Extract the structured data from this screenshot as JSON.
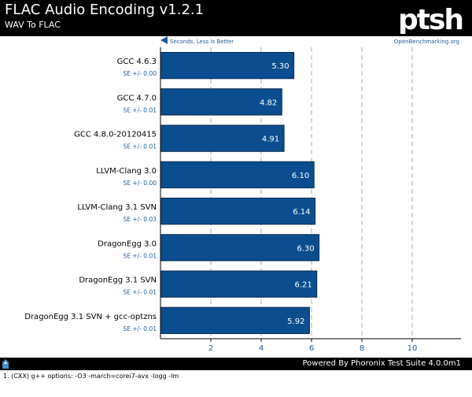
{
  "header": {
    "title": "FLAC Audio Encoding v1.2.1",
    "subtitle": "WAV To FLAC",
    "logo_text": "ptsh"
  },
  "chart_data": {
    "type": "bar",
    "orientation": "horizontal",
    "direction_note": "Seconds, Less Is Better",
    "source": "OpenBenchmarking.org",
    "categories": [
      "GCC 4.6.3",
      "GCC 4.7.0",
      "GCC 4.8.0-20120415",
      "LLVM-Clang 3.0",
      "LLVM-Clang 3.1 SVN",
      "DragonEgg 3.0",
      "DragonEgg 3.1 SVN",
      "DragonEgg 3.1 SVN + gcc-optzns"
    ],
    "errors": [
      "SE +/- 0.00",
      "SE +/- 0.01",
      "SE +/- 0.01",
      "SE +/- 0.00",
      "SE +/- 0.03",
      "SE +/- 0.01",
      "SE +/- 0.01",
      "SE +/- 0.01"
    ],
    "values": [
      5.3,
      4.82,
      4.91,
      6.1,
      6.14,
      6.3,
      6.21,
      5.92
    ],
    "value_labels": [
      "5.30",
      "4.82",
      "4.91",
      "6.10",
      "6.14",
      "6.30",
      "6.21",
      "5.92"
    ],
    "xticks": [
      2,
      4,
      6,
      8,
      10
    ],
    "xtick_labels": [
      "2",
      "4",
      "6",
      "8",
      "10"
    ],
    "xlim": [
      0,
      12
    ],
    "grid": true,
    "colors": {
      "bar": "#0b4e8f",
      "bar_border": "#05294f",
      "grid": "#bbbbbb",
      "axis": "#000000",
      "error_text": "#1f5c99",
      "link": "#1f5c99"
    }
  },
  "footer": {
    "powered_by": "Powered By Phoronix Test Suite 4.0.0m1",
    "note": "1. (CXX) g++ options: -O3 -march=corei7-avx -logg -lm"
  }
}
